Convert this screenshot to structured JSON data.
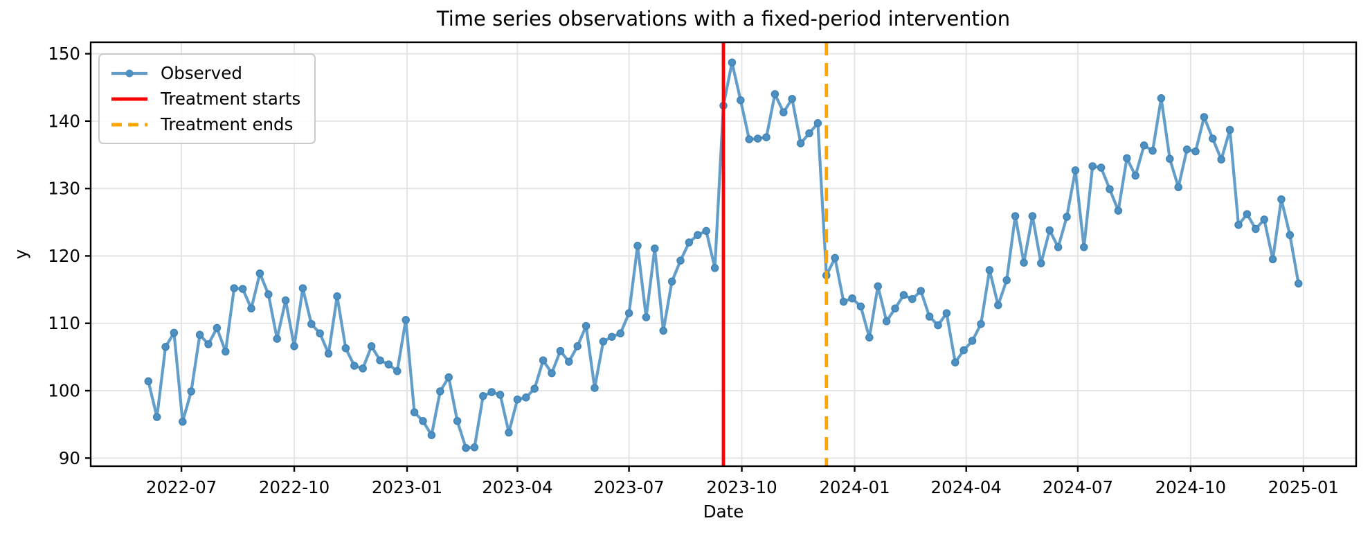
{
  "figure": {
    "title": "Time series observations with a fixed-period intervention",
    "xlabel": "Date",
    "ylabel": "y"
  },
  "legend": {
    "entries": [
      {
        "label": "Observed"
      },
      {
        "label": "Treatment starts"
      },
      {
        "label": "Treatment ends"
      }
    ]
  },
  "chart_data": {
    "type": "line",
    "title": "Time series observations with a fixed-period intervention",
    "xlabel": "Date",
    "ylabel": "y",
    "grid": true,
    "legend_position": "upper left",
    "ylim": [
      88.8,
      151.7
    ],
    "xlim_dates": [
      "2022-04-18",
      "2025-02-13"
    ],
    "y_ticks": [
      90,
      100,
      110,
      120,
      130,
      140,
      150
    ],
    "x_ticks": [
      {
        "date": "2022-07-01",
        "label": "2022-07"
      },
      {
        "date": "2022-10-01",
        "label": "2022-10"
      },
      {
        "date": "2023-01-01",
        "label": "2023-01"
      },
      {
        "date": "2023-04-01",
        "label": "2023-04"
      },
      {
        "date": "2023-07-01",
        "label": "2023-07"
      },
      {
        "date": "2023-10-01",
        "label": "2023-10"
      },
      {
        "date": "2024-01-01",
        "label": "2024-01"
      },
      {
        "date": "2024-04-01",
        "label": "2024-04"
      },
      {
        "date": "2024-07-01",
        "label": "2024-07"
      },
      {
        "date": "2024-10-01",
        "label": "2024-10"
      },
      {
        "date": "2025-01-01",
        "label": "2025-01"
      }
    ],
    "series": [
      {
        "name": "Observed",
        "start_date": "2022-06-04",
        "freq_days": 7,
        "values": [
          101.4,
          96.1,
          106.5,
          108.6,
          95.4,
          99.9,
          108.3,
          106.9,
          109.3,
          105.8,
          115.2,
          115.1,
          112.2,
          117.4,
          114.3,
          107.7,
          113.4,
          106.6,
          115.2,
          109.9,
          108.5,
          105.5,
          114.0,
          106.3,
          103.7,
          103.3,
          106.6,
          104.5,
          103.9,
          102.9,
          110.5,
          96.8,
          95.5,
          93.4,
          99.9,
          102.0,
          95.5,
          91.5,
          91.6,
          99.2,
          99.8,
          99.4,
          93.8,
          98.7,
          99.0,
          100.3,
          104.5,
          102.6,
          105.9,
          104.3,
          106.6,
          109.6,
          100.4,
          107.3,
          108.0,
          108.5,
          111.5,
          121.5,
          110.9,
          121.1,
          108.9,
          116.2,
          119.3,
          122.0,
          123.1,
          123.7,
          118.2,
          142.3,
          148.7,
          143.1,
          137.3,
          137.4,
          137.6,
          144.0,
          141.3,
          143.3,
          136.7,
          138.2,
          139.7,
          117.1,
          119.7,
          113.2,
          113.7,
          112.5,
          107.9,
          115.5,
          110.3,
          112.2,
          114.2,
          113.6,
          114.8,
          111.0,
          109.7,
          111.5,
          104.2,
          106.0,
          107.4,
          109.9,
          117.9,
          112.7,
          116.4,
          125.9,
          119.0,
          125.9,
          118.9,
          123.8,
          121.3,
          125.8,
          132.7,
          121.3,
          133.3,
          133.1,
          129.9,
          126.7,
          134.5,
          131.9,
          136.4,
          135.6,
          143.4,
          134.4,
          130.2,
          135.8,
          135.5,
          140.6,
          137.4,
          134.3,
          138.7,
          124.6,
          126.2,
          124.0,
          125.4,
          119.5,
          128.4,
          123.1,
          115.9
        ]
      }
    ],
    "vlines": [
      {
        "name": "Treatment starts",
        "date": "2023-09-16",
        "color": "#ff0000",
        "style": "solid"
      },
      {
        "name": "Treatment ends",
        "date": "2023-12-09",
        "color": "#ffa500",
        "style": "dashed"
      }
    ],
    "colors": {
      "observed_line": "#639dc9",
      "observed_marker": "#4e90c1",
      "observed_marker_edge": "#3f83b5",
      "treatment_start": "#ff0000",
      "treatment_end": "#ffa500",
      "grid": "#e3e3e3",
      "spine": "#000000"
    }
  }
}
